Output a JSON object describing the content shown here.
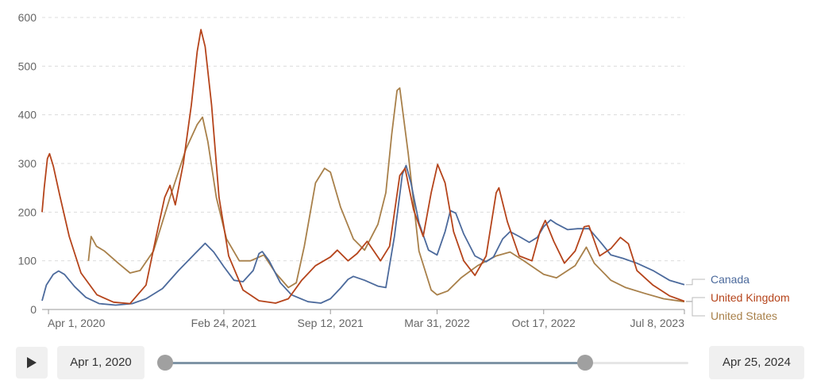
{
  "chart_data": {
    "type": "line",
    "x_type": "date",
    "x_range": [
      "2020-03-20",
      "2023-07-08"
    ],
    "y_ticks": [
      "0",
      "100",
      "200",
      "300",
      "400",
      "500",
      "600"
    ],
    "ylim": [
      0,
      600
    ],
    "x_ticks": [
      {
        "label": "Apr 1, 2020",
        "date": "2020-04-01"
      },
      {
        "label": "Feb 24, 2021",
        "date": "2021-02-24"
      },
      {
        "label": "Sep 12, 2021",
        "date": "2021-09-12"
      },
      {
        "label": "Mar 31, 2022",
        "date": "2022-03-31"
      },
      {
        "label": "Oct 17, 2022",
        "date": "2022-10-17"
      },
      {
        "label": "Jul 8, 2023",
        "date": "2023-07-08"
      }
    ],
    "grid": true,
    "legend_placement": "right (labels at line ends)",
    "series": [
      {
        "name": "Canada",
        "color": "#4c6a9c",
        "points": [
          [
            "2020-03-20",
            18
          ],
          [
            "2020-03-28",
            50
          ],
          [
            "2020-04-10",
            72
          ],
          [
            "2020-04-20",
            79
          ],
          [
            "2020-05-01",
            72
          ],
          [
            "2020-05-20",
            47
          ],
          [
            "2020-06-10",
            25
          ],
          [
            "2020-07-05",
            12
          ],
          [
            "2020-08-05",
            9
          ],
          [
            "2020-09-05",
            12
          ],
          [
            "2020-10-01",
            22
          ],
          [
            "2020-11-01",
            43
          ],
          [
            "2020-12-01",
            80
          ],
          [
            "2021-01-01",
            115
          ],
          [
            "2021-01-20",
            136
          ],
          [
            "2021-02-05",
            118
          ],
          [
            "2021-02-24",
            88
          ],
          [
            "2021-03-15",
            60
          ],
          [
            "2021-04-01",
            57
          ],
          [
            "2021-04-20",
            80
          ],
          [
            "2021-05-01",
            115
          ],
          [
            "2021-05-07",
            119
          ],
          [
            "2021-05-20",
            100
          ],
          [
            "2021-06-10",
            55
          ],
          [
            "2021-07-01",
            30
          ],
          [
            "2021-08-01",
            16
          ],
          [
            "2021-08-25",
            13
          ],
          [
            "2021-09-12",
            22
          ],
          [
            "2021-10-01",
            44
          ],
          [
            "2021-10-15",
            62
          ],
          [
            "2021-10-25",
            68
          ],
          [
            "2021-11-15",
            60
          ],
          [
            "2021-12-10",
            48
          ],
          [
            "2021-12-25",
            45
          ],
          [
            "2022-01-10",
            150
          ],
          [
            "2022-01-25",
            278
          ],
          [
            "2022-02-01",
            296
          ],
          [
            "2022-02-10",
            260
          ],
          [
            "2022-02-25",
            178
          ],
          [
            "2022-03-15",
            122
          ],
          [
            "2022-03-31",
            112
          ],
          [
            "2022-04-15",
            160
          ],
          [
            "2022-04-25",
            203
          ],
          [
            "2022-05-05",
            198
          ],
          [
            "2022-05-20",
            155
          ],
          [
            "2022-06-10",
            110
          ],
          [
            "2022-07-01",
            98
          ],
          [
            "2022-07-15",
            108
          ],
          [
            "2022-08-01",
            145
          ],
          [
            "2022-08-15",
            160
          ],
          [
            "2022-09-01",
            150
          ],
          [
            "2022-09-20",
            138
          ],
          [
            "2022-10-05",
            148
          ],
          [
            "2022-10-17",
            170
          ],
          [
            "2022-10-30",
            184
          ],
          [
            "2022-11-10",
            176
          ],
          [
            "2022-12-01",
            164
          ],
          [
            "2022-12-20",
            166
          ],
          [
            "2023-01-10",
            166
          ],
          [
            "2023-02-01",
            138
          ],
          [
            "2023-02-20",
            112
          ],
          [
            "2023-03-15",
            105
          ],
          [
            "2023-04-10",
            95
          ],
          [
            "2023-05-10",
            80
          ],
          [
            "2023-06-10",
            60
          ],
          [
            "2023-07-08",
            51
          ]
        ]
      },
      {
        "name": "United Kingdom",
        "color": "#b5441b",
        "points": [
          [
            "2020-03-20",
            200
          ],
          [
            "2020-03-24",
            250
          ],
          [
            "2020-03-30",
            310
          ],
          [
            "2020-04-03",
            320
          ],
          [
            "2020-04-10",
            295
          ],
          [
            "2020-04-22",
            235
          ],
          [
            "2020-05-10",
            150
          ],
          [
            "2020-06-01",
            75
          ],
          [
            "2020-07-01",
            30
          ],
          [
            "2020-08-01",
            15
          ],
          [
            "2020-09-01",
            12
          ],
          [
            "2020-10-01",
            50
          ],
          [
            "2020-10-20",
            150
          ],
          [
            "2020-11-05",
            230
          ],
          [
            "2020-11-15",
            255
          ],
          [
            "2020-11-25",
            215
          ],
          [
            "2020-12-10",
            300
          ],
          [
            "2020-12-25",
            420
          ],
          [
            "2021-01-05",
            530
          ],
          [
            "2021-01-12",
            575
          ],
          [
            "2021-01-20",
            540
          ],
          [
            "2021-02-01",
            420
          ],
          [
            "2021-02-15",
            230
          ],
          [
            "2021-03-05",
            110
          ],
          [
            "2021-04-01",
            40
          ],
          [
            "2021-05-01",
            18
          ],
          [
            "2021-06-01",
            13
          ],
          [
            "2021-06-25",
            22
          ],
          [
            "2021-07-20",
            60
          ],
          [
            "2021-08-15",
            90
          ],
          [
            "2021-09-12",
            108
          ],
          [
            "2021-09-25",
            122
          ],
          [
            "2021-10-15",
            100
          ],
          [
            "2021-11-01",
            115
          ],
          [
            "2021-11-20",
            140
          ],
          [
            "2021-12-15",
            100
          ],
          [
            "2022-01-01",
            130
          ],
          [
            "2022-01-20",
            275
          ],
          [
            "2022-01-30",
            290
          ],
          [
            "2022-02-15",
            205
          ],
          [
            "2022-03-05",
            150
          ],
          [
            "2022-03-20",
            240
          ],
          [
            "2022-04-01",
            298
          ],
          [
            "2022-04-15",
            260
          ],
          [
            "2022-05-01",
            160
          ],
          [
            "2022-05-20",
            100
          ],
          [
            "2022-06-10",
            70
          ],
          [
            "2022-07-01",
            110
          ],
          [
            "2022-07-20",
            240
          ],
          [
            "2022-07-25",
            250
          ],
          [
            "2022-08-10",
            180
          ],
          [
            "2022-09-01",
            110
          ],
          [
            "2022-09-25",
            100
          ],
          [
            "2022-10-10",
            160
          ],
          [
            "2022-10-20",
            183
          ],
          [
            "2022-11-05",
            140
          ],
          [
            "2022-11-25",
            95
          ],
          [
            "2022-12-15",
            120
          ],
          [
            "2023-01-01",
            170
          ],
          [
            "2023-01-10",
            172
          ],
          [
            "2023-01-30",
            110
          ],
          [
            "2023-02-20",
            125
          ],
          [
            "2023-03-10",
            148
          ],
          [
            "2023-03-25",
            135
          ],
          [
            "2023-04-10",
            80
          ],
          [
            "2023-05-10",
            50
          ],
          [
            "2023-06-10",
            28
          ],
          [
            "2023-07-08",
            17
          ]
        ]
      },
      {
        "name": "United States",
        "color": "#a8804a",
        "points": [
          [
            "2020-06-15",
            100
          ],
          [
            "2020-06-20",
            150
          ],
          [
            "2020-06-30",
            130
          ],
          [
            "2020-07-15",
            120
          ],
          [
            "2020-08-10",
            95
          ],
          [
            "2020-09-01",
            75
          ],
          [
            "2020-09-20",
            80
          ],
          [
            "2020-10-15",
            120
          ],
          [
            "2020-11-15",
            230
          ],
          [
            "2020-12-15",
            330
          ],
          [
            "2021-01-05",
            380
          ],
          [
            "2021-01-15",
            395
          ],
          [
            "2021-01-25",
            345
          ],
          [
            "2021-02-10",
            230
          ],
          [
            "2021-03-01",
            145
          ],
          [
            "2021-03-25",
            100
          ],
          [
            "2021-04-15",
            100
          ],
          [
            "2021-05-10",
            112
          ],
          [
            "2021-06-01",
            75
          ],
          [
            "2021-06-25",
            45
          ],
          [
            "2021-07-10",
            55
          ],
          [
            "2021-07-25",
            130
          ],
          [
            "2021-08-15",
            260
          ],
          [
            "2021-09-01",
            290
          ],
          [
            "2021-09-12",
            282
          ],
          [
            "2021-10-01",
            210
          ],
          [
            "2021-10-25",
            145
          ],
          [
            "2021-11-15",
            122
          ],
          [
            "2021-12-10",
            175
          ],
          [
            "2021-12-25",
            240
          ],
          [
            "2022-01-05",
            360
          ],
          [
            "2022-01-15",
            450
          ],
          [
            "2022-01-20",
            455
          ],
          [
            "2022-02-05",
            320
          ],
          [
            "2022-02-25",
            120
          ],
          [
            "2022-03-20",
            40
          ],
          [
            "2022-03-31",
            30
          ],
          [
            "2022-04-20",
            38
          ],
          [
            "2022-05-15",
            65
          ],
          [
            "2022-06-15",
            90
          ],
          [
            "2022-07-20",
            110
          ],
          [
            "2022-08-15",
            118
          ],
          [
            "2022-09-10",
            100
          ],
          [
            "2022-10-17",
            72
          ],
          [
            "2022-11-10",
            65
          ],
          [
            "2022-12-15",
            90
          ],
          [
            "2023-01-05",
            128
          ],
          [
            "2023-01-20",
            95
          ],
          [
            "2023-02-20",
            60
          ],
          [
            "2023-03-20",
            45
          ],
          [
            "2023-04-25",
            33
          ],
          [
            "2023-05-30",
            22
          ],
          [
            "2023-07-08",
            16
          ]
        ]
      }
    ]
  },
  "controls": {
    "start_date": "Apr 1, 2020",
    "end_date": "Apr 25, 2024",
    "slider_start_fraction": 0,
    "slider_end_fraction": 0.8
  }
}
